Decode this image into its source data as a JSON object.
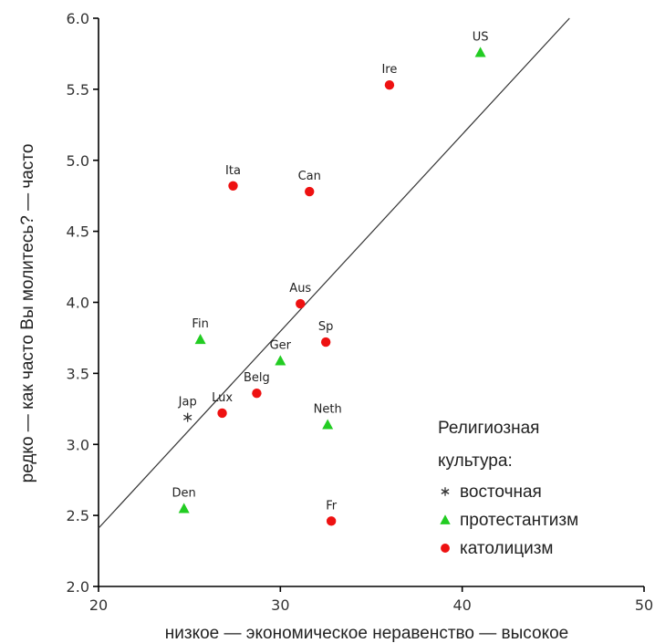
{
  "chart_data": {
    "type": "scatter",
    "xlabel": "низкое — экономическое неравенство — высокое",
    "ylabel": "редко — как часто Вы молитесь? — часто",
    "xlim": [
      20,
      50
    ],
    "ylim": [
      2.0,
      6.0
    ],
    "x_ticks": [
      "20",
      "30",
      "40",
      "50"
    ],
    "y_ticks": [
      "2.0",
      "2.5",
      "3.0",
      "3.5",
      "4.0",
      "4.5",
      "5.0",
      "5.5",
      "6.0"
    ],
    "grid": false,
    "legend_position": "bottom-right",
    "legend_title_lines": [
      "Религиозная",
      "культура:"
    ],
    "series": [
      {
        "name": "восточная",
        "marker": "asterisk",
        "color": "#333333",
        "points": [
          {
            "label": "Jap",
            "x": 24.9,
            "y": 3.19
          }
        ]
      },
      {
        "name": "протестантизм",
        "marker": "triangle",
        "color": "#22cc22",
        "points": [
          {
            "label": "US",
            "x": 41.0,
            "y": 5.76
          },
          {
            "label": "Fin",
            "x": 25.6,
            "y": 3.74
          },
          {
            "label": "Ger",
            "x": 30.0,
            "y": 3.59
          },
          {
            "label": "Neth",
            "x": 32.6,
            "y": 3.14
          },
          {
            "label": "Den",
            "x": 24.7,
            "y": 2.55
          }
        ]
      },
      {
        "name": "католицизм",
        "marker": "circle",
        "color": "#ee1111",
        "points": [
          {
            "label": "Ire",
            "x": 36.0,
            "y": 5.53
          },
          {
            "label": "Ita",
            "x": 27.4,
            "y": 4.82
          },
          {
            "label": "Can",
            "x": 31.6,
            "y": 4.78
          },
          {
            "label": "Aus",
            "x": 31.1,
            "y": 3.99
          },
          {
            "label": "Sp",
            "x": 32.5,
            "y": 3.72
          },
          {
            "label": "Belg",
            "x": 28.7,
            "y": 3.36
          },
          {
            "label": "Lux",
            "x": 26.8,
            "y": 3.22
          },
          {
            "label": "Fr",
            "x": 32.8,
            "y": 2.46
          }
        ]
      }
    ],
    "fit_line": {
      "x": [
        20.0,
        45.9
      ],
      "y": [
        2.41,
        6.0
      ]
    }
  }
}
